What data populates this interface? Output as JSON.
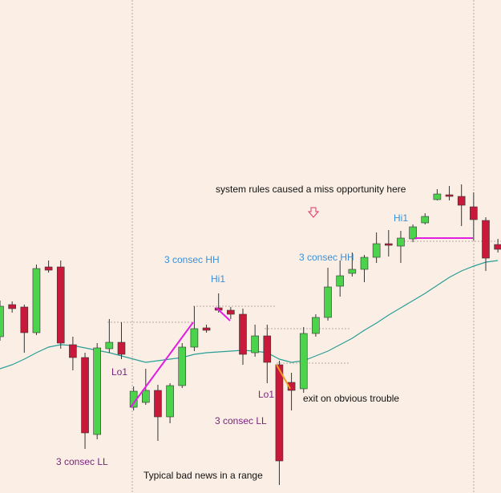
{
  "chart_data": {
    "type": "candlestick",
    "up_color": "#4cd34c",
    "down_color": "#c8193a",
    "ma_color": "#2a9d98",
    "ylim": [
      0,
      615
    ],
    "open": [
      195,
      235,
      232,
      200,
      282,
      282,
      185,
      169,
      73,
      180,
      188,
      107,
      113,
      128,
      95,
      134,
      182,
      206,
      231,
      228,
      223,
      175,
      196,
      160,
      138,
      130,
      199,
      219,
      258,
      274,
      279,
      294,
      311,
      308,
      317,
      337,
      366,
      372,
      370,
      357,
      340,
      310
    ],
    "high": [
      240,
      239,
      235,
      285,
      290,
      290,
      195,
      175,
      187,
      217,
      213,
      133,
      155,
      135,
      137,
      187,
      233,
      210,
      249,
      232,
      230,
      210,
      210,
      165,
      150,
      207,
      223,
      281,
      290,
      300,
      297,
      325,
      328,
      327,
      335,
      349,
      379,
      383,
      385,
      375,
      344,
      317
    ],
    "low": [
      190,
      225,
      175,
      197,
      275,
      180,
      153,
      55,
      67,
      175,
      167,
      103,
      110,
      65,
      87,
      131,
      177,
      200,
      225,
      217,
      160,
      170,
      137,
      10,
      103,
      125,
      195,
      215,
      245,
      270,
      263,
      287,
      295,
      287,
      313,
      335,
      365,
      365,
      333,
      315,
      277,
      300
    ],
    "close": [
      233,
      230,
      200,
      280,
      278,
      187,
      169,
      75,
      181,
      188,
      173,
      127,
      128,
      95,
      134,
      182,
      205,
      203,
      228,
      223,
      173,
      196,
      163,
      40,
      128,
      199,
      219,
      257,
      271,
      279,
      294,
      311,
      309,
      318,
      332,
      345,
      373,
      370,
      359,
      341,
      293,
      304
    ],
    "ma": [
      155,
      160,
      167,
      175,
      182,
      185,
      184,
      181,
      178,
      175,
      171,
      167,
      163,
      165,
      167,
      169,
      173,
      175,
      176,
      177,
      178,
      177,
      175,
      167,
      163,
      165,
      171,
      177,
      185,
      193,
      203,
      212,
      222,
      231,
      240,
      249,
      259,
      269,
      277,
      283,
      288,
      290
    ],
    "annotations": [
      "system rules caused a miss opportunity here",
      "3 consec HH",
      "Hi1",
      "3 consec HH",
      "Hi1",
      "Lo1",
      "Lo1",
      "3 consec LL",
      "3 consec LL",
      "exit on obvious trouble",
      "Typical bad news in a range"
    ]
  }
}
